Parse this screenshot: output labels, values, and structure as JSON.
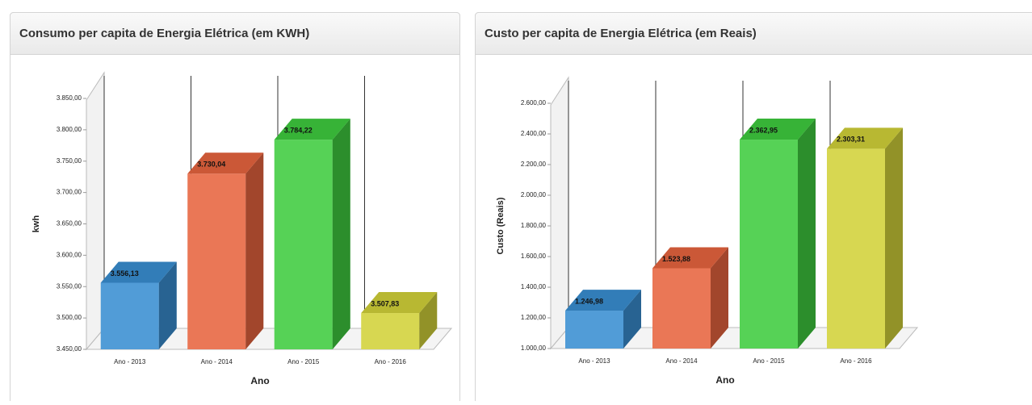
{
  "chart_data": [
    {
      "type": "bar3d",
      "title": "Consumo per capita de Energia Elétrica (em KWH)",
      "x_label": "Ano",
      "y_label": "kwh",
      "categories": [
        "Ano - 2013",
        "Ano - 2014",
        "Ano - 2015",
        "Ano - 2016"
      ],
      "values": [
        3556.13,
        3730.04,
        3784.22,
        3507.83
      ],
      "value_labels": [
        "3.556,13",
        "3.730,04",
        "3.784,22",
        "3.507,83"
      ],
      "colors": [
        "#3a8fd2",
        "#e8653f",
        "#3fcc3f",
        "#d2d23a"
      ],
      "ylim": [
        3450,
        3850
      ],
      "yticks": [
        {
          "value": 3450,
          "label": "3.450,00"
        },
        {
          "value": 3500,
          "label": "3.500,00"
        },
        {
          "value": 3550,
          "label": "3.550,00"
        },
        {
          "value": 3600,
          "label": "3.600,00"
        },
        {
          "value": 3650,
          "label": "3.650,00"
        },
        {
          "value": 3700,
          "label": "3.700,00"
        },
        {
          "value": 3750,
          "label": "3.750,00"
        },
        {
          "value": 3800,
          "label": "3.800,00"
        },
        {
          "value": 3850,
          "label": "3.850,00"
        }
      ]
    },
    {
      "type": "bar3d",
      "title": "Custo per capita de Energia Elétrica (em Reais)",
      "x_label": "Ano",
      "y_label": "Custo (Reais)",
      "categories": [
        "Ano - 2013",
        "Ano - 2014",
        "Ano - 2015",
        "Ano - 2016"
      ],
      "values": [
        1246.98,
        1523.88,
        2362.95,
        2303.31
      ],
      "value_labels": [
        "1.246,98",
        "1.523,88",
        "2.362,95",
        "2.303,31"
      ],
      "colors": [
        "#3a8fd2",
        "#e8653f",
        "#3fcc3f",
        "#d2d23a"
      ],
      "ylim": [
        1000,
        2600
      ],
      "yticks": [
        {
          "value": 1000,
          "label": "1.000,00"
        },
        {
          "value": 1200,
          "label": "1.200,00"
        },
        {
          "value": 1400,
          "label": "1.400,00"
        },
        {
          "value": 1600,
          "label": "1.600,00"
        },
        {
          "value": 1800,
          "label": "1.800,00"
        },
        {
          "value": 2000,
          "label": "2.000,00"
        },
        {
          "value": 2200,
          "label": "2.200,00"
        },
        {
          "value": 2400,
          "label": "2.400,00"
        },
        {
          "value": 2600,
          "label": "2.600,00"
        }
      ]
    }
  ]
}
